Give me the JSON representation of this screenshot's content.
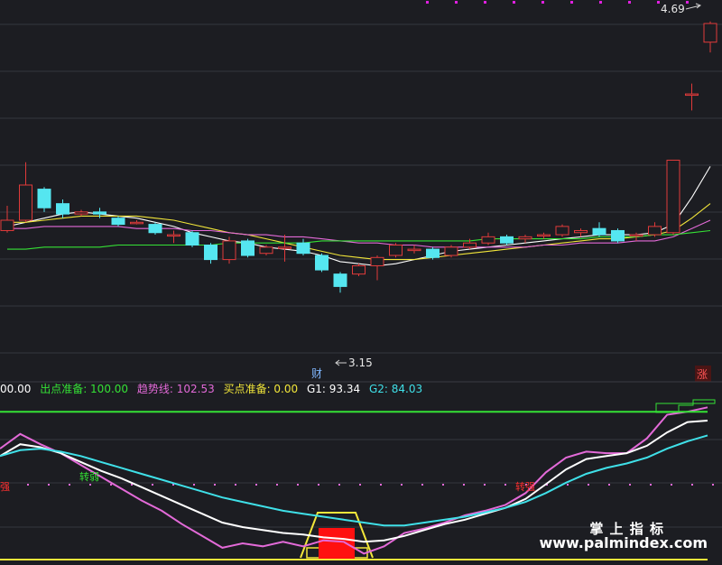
{
  "price_panel": {
    "high_label": "4.69",
    "low_label": "3.15",
    "event_badge": "财",
    "limit_badge": "涨"
  },
  "indicator_bar": {
    "items": [
      {
        "label": "",
        "value": "00.00",
        "color": "#ffffff"
      },
      {
        "label": "出点准备:",
        "value": "100.00",
        "color": "#35e135"
      },
      {
        "label": "趋势线:",
        "value": "102.53",
        "color": "#e36ad8"
      },
      {
        "label": "买点准备:",
        "value": "0.00",
        "color": "#f2e63a"
      },
      {
        "label": "G1:",
        "value": "93.34",
        "color": "#ffffff"
      },
      {
        "label": "G2:",
        "value": "84.03",
        "color": "#3fe0e8"
      }
    ]
  },
  "indicator_panel": {
    "tag_left": "强",
    "tag_weak": "转弱",
    "tag_strong": "转强"
  },
  "watermark": {
    "title": "掌 上 指 标",
    "url": "www.palmindex.com"
  },
  "chart_data": [
    {
      "type": "candlestick",
      "title": "",
      "colors": {
        "up": "#e03a3a",
        "down": "#55e6f0",
        "ma5": "#ffffff",
        "ma10": "#f2e63a",
        "ma20": "#e36ad8",
        "ma60": "#35e135"
      },
      "ylim": [
        3.05,
        4.75
      ],
      "candles": [
        {
          "o": 3.68,
          "c": 3.73,
          "h": 3.8,
          "l": 3.67
        },
        {
          "o": 3.73,
          "c": 3.9,
          "h": 4.01,
          "l": 3.72
        },
        {
          "o": 3.88,
          "c": 3.79,
          "h": 3.89,
          "l": 3.77
        },
        {
          "o": 3.81,
          "c": 3.76,
          "h": 3.83,
          "l": 3.74
        },
        {
          "o": 3.76,
          "c": 3.77,
          "h": 3.78,
          "l": 3.75
        },
        {
          "o": 3.77,
          "c": 3.76,
          "h": 3.79,
          "l": 3.74
        },
        {
          "o": 3.74,
          "c": 3.71,
          "h": 3.75,
          "l": 3.7
        },
        {
          "o": 3.72,
          "c": 3.72,
          "h": 3.73,
          "l": 3.71
        },
        {
          "o": 3.71,
          "c": 3.67,
          "h": 3.72,
          "l": 3.66
        },
        {
          "o": 3.66,
          "c": 3.66,
          "h": 3.68,
          "l": 3.62
        },
        {
          "o": 3.67,
          "c": 3.61,
          "h": 3.68,
          "l": 3.6
        },
        {
          "o": 3.61,
          "c": 3.54,
          "h": 3.62,
          "l": 3.52
        },
        {
          "o": 3.54,
          "c": 3.63,
          "h": 3.65,
          "l": 3.52
        },
        {
          "o": 3.63,
          "c": 3.56,
          "h": 3.64,
          "l": 3.55
        },
        {
          "o": 3.57,
          "c": 3.6,
          "h": 3.61,
          "l": 3.56
        },
        {
          "o": 3.6,
          "c": 3.6,
          "h": 3.66,
          "l": 3.53
        },
        {
          "o": 3.62,
          "c": 3.57,
          "h": 3.64,
          "l": 3.56
        },
        {
          "o": 3.56,
          "c": 3.49,
          "h": 3.57,
          "l": 3.48
        },
        {
          "o": 3.47,
          "c": 3.41,
          "h": 3.48,
          "l": 3.38
        },
        {
          "o": 3.47,
          "c": 3.51,
          "h": 3.52,
          "l": 3.46
        },
        {
          "o": 3.51,
          "c": 3.55,
          "h": 3.56,
          "l": 3.44
        },
        {
          "o": 3.56,
          "c": 3.61,
          "h": 3.62,
          "l": 3.55
        },
        {
          "o": 3.59,
          "c": 3.59,
          "h": 3.61,
          "l": 3.57
        },
        {
          "o": 3.59,
          "c": 3.55,
          "h": 3.6,
          "l": 3.54
        },
        {
          "o": 3.56,
          "c": 3.6,
          "h": 3.61,
          "l": 3.55
        },
        {
          "o": 3.6,
          "c": 3.62,
          "h": 3.64,
          "l": 3.59
        },
        {
          "o": 3.62,
          "c": 3.65,
          "h": 3.67,
          "l": 3.61
        },
        {
          "o": 3.65,
          "c": 3.62,
          "h": 3.66,
          "l": 3.61
        },
        {
          "o": 3.64,
          "c": 3.65,
          "h": 3.66,
          "l": 3.62
        },
        {
          "o": 3.66,
          "c": 3.66,
          "h": 3.67,
          "l": 3.64
        },
        {
          "o": 3.66,
          "c": 3.7,
          "h": 3.71,
          "l": 3.65
        },
        {
          "o": 3.67,
          "c": 3.68,
          "h": 3.69,
          "l": 3.65
        },
        {
          "o": 3.69,
          "c": 3.66,
          "h": 3.72,
          "l": 3.65
        },
        {
          "o": 3.68,
          "c": 3.63,
          "h": 3.69,
          "l": 3.62
        },
        {
          "o": 3.66,
          "c": 3.66,
          "h": 3.67,
          "l": 3.63
        },
        {
          "o": 3.66,
          "c": 3.7,
          "h": 3.72,
          "l": 3.65
        },
        {
          "o": 3.67,
          "c": 4.02,
          "h": 4.02,
          "l": 3.66
        },
        {
          "o": 4.34,
          "c": 4.34,
          "h": 4.39,
          "l": 4.26
        },
        {
          "o": 4.59,
          "c": 4.68,
          "h": 4.69,
          "l": 4.54
        }
      ],
      "ma_series": [
        {
          "name": "",
          "color": "#ffffff",
          "values": [
            3.7,
            3.72,
            3.74,
            3.76,
            3.77,
            3.76,
            3.75,
            3.74,
            3.72,
            3.7,
            3.67,
            3.65,
            3.63,
            3.62,
            3.6,
            3.59,
            3.58,
            3.56,
            3.53,
            3.52,
            3.51,
            3.52,
            3.54,
            3.56,
            3.58,
            3.59,
            3.6,
            3.61,
            3.62,
            3.63,
            3.64,
            3.65,
            3.66,
            3.66,
            3.66,
            3.67,
            3.71,
            3.84,
            3.99
          ]
        },
        {
          "name": "",
          "color": "#f2e63a",
          "values": [
            3.72,
            3.72,
            3.73,
            3.74,
            3.75,
            3.75,
            3.75,
            3.75,
            3.74,
            3.73,
            3.71,
            3.69,
            3.67,
            3.66,
            3.64,
            3.62,
            3.6,
            3.58,
            3.56,
            3.55,
            3.54,
            3.54,
            3.54,
            3.55,
            3.56,
            3.57,
            3.58,
            3.59,
            3.6,
            3.61,
            3.62,
            3.63,
            3.64,
            3.64,
            3.65,
            3.66,
            3.68,
            3.74,
            3.81
          ]
        },
        {
          "name": "",
          "color": "#e36ad8",
          "values": [
            3.69,
            3.69,
            3.7,
            3.7,
            3.7,
            3.7,
            3.7,
            3.69,
            3.69,
            3.69,
            3.68,
            3.68,
            3.67,
            3.66,
            3.66,
            3.65,
            3.65,
            3.64,
            3.63,
            3.62,
            3.62,
            3.61,
            3.61,
            3.6,
            3.6,
            3.6,
            3.6,
            3.6,
            3.6,
            3.61,
            3.61,
            3.62,
            3.62,
            3.62,
            3.63,
            3.63,
            3.65,
            3.69,
            3.73
          ]
        },
        {
          "name": "",
          "color": "#35e135",
          "values": [
            3.59,
            3.59,
            3.6,
            3.6,
            3.6,
            3.6,
            3.61,
            3.61,
            3.61,
            3.61,
            3.61,
            3.61,
            3.62,
            3.62,
            3.62,
            3.62,
            3.62,
            3.63,
            3.63,
            3.63,
            3.63,
            3.63,
            3.63,
            3.63,
            3.63,
            3.63,
            3.64,
            3.64,
            3.64,
            3.64,
            3.64,
            3.64,
            3.65,
            3.65,
            3.65,
            3.66,
            3.66,
            3.67,
            3.68
          ]
        }
      ]
    },
    {
      "type": "line",
      "title": "",
      "ylim": [
        0,
        105
      ],
      "series": [
        {
          "name": "趋势线",
          "color": "#e36ad8",
          "values": [
            75,
            85,
            78,
            72,
            64,
            56,
            48,
            40,
            33,
            24,
            16,
            8,
            11,
            9,
            12,
            9,
            13,
            12,
            4,
            9,
            18,
            21,
            25,
            30,
            33,
            37,
            45,
            59,
            69,
            73,
            72,
            72,
            82,
            98,
            100,
            103
          ]
        },
        {
          "name": "G1",
          "color": "#ffffff",
          "values": [
            70,
            78,
            76,
            72,
            66,
            60,
            55,
            49,
            43,
            37,
            31,
            25,
            22,
            20,
            18,
            17,
            15,
            14,
            12,
            13,
            16,
            20,
            24,
            27,
            31,
            35,
            41,
            51,
            61,
            68,
            70,
            72,
            77,
            86,
            93,
            94
          ]
        },
        {
          "name": "G2",
          "color": "#3fe0e8",
          "values": [
            70,
            74,
            75,
            73,
            70,
            66,
            62,
            58,
            54,
            50,
            46,
            42,
            39,
            36,
            33,
            31,
            29,
            27,
            25,
            23,
            23,
            25,
            27,
            29,
            32,
            35,
            39,
            45,
            52,
            58,
            62,
            65,
            69,
            75,
            80,
            84
          ]
        },
        {
          "name": "出点准备",
          "color": "#35e135",
          "values": [
            100,
            100,
            100,
            100,
            100,
            100,
            100,
            100,
            100,
            100,
            100,
            100,
            100,
            100,
            100,
            100,
            100,
            100,
            100,
            100,
            100,
            100,
            100,
            100,
            100,
            100,
            100,
            100,
            100,
            100,
            100,
            100,
            100,
            100,
            100,
            100
          ]
        },
        {
          "name": "买点准备",
          "color": "#f2e63a",
          "values": [
            0,
            0,
            0,
            0,
            0,
            0,
            0,
            0,
            0,
            0,
            0,
            0,
            0,
            0,
            0,
            0,
            0,
            0,
            0,
            0,
            0,
            0,
            0,
            0,
            0,
            0,
            0,
            0,
            0,
            0,
            0,
            0,
            0,
            0,
            0,
            0
          ]
        }
      ]
    }
  ]
}
